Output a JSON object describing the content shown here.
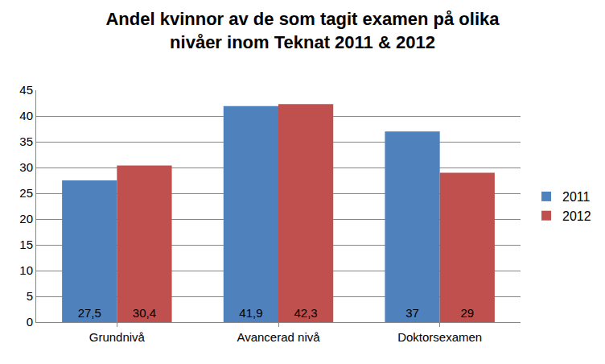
{
  "chart_data": {
    "type": "bar",
    "title": "Andel kvinnor av de som tagit examen på olika\nnivåer inom Teknat 2011 & 2012",
    "categories": [
      "Grundnivå",
      "Avancerad nivå",
      "Doktorsexamen"
    ],
    "series": [
      {
        "name": "2011",
        "color": "#4f81bd",
        "values": [
          27.5,
          41.9,
          37
        ],
        "value_labels": [
          "27,5",
          "41,9",
          "37"
        ]
      },
      {
        "name": "2012",
        "color": "#c0504d",
        "values": [
          30.4,
          42.3,
          29
        ],
        "value_labels": [
          "30,4",
          "42,3",
          "29"
        ]
      }
    ],
    "ylim": [
      0,
      45
    ],
    "yticks": [
      0,
      5,
      10,
      15,
      20,
      25,
      30,
      35,
      40,
      45
    ],
    "grid": true,
    "legend": "right",
    "data_labels": true
  }
}
